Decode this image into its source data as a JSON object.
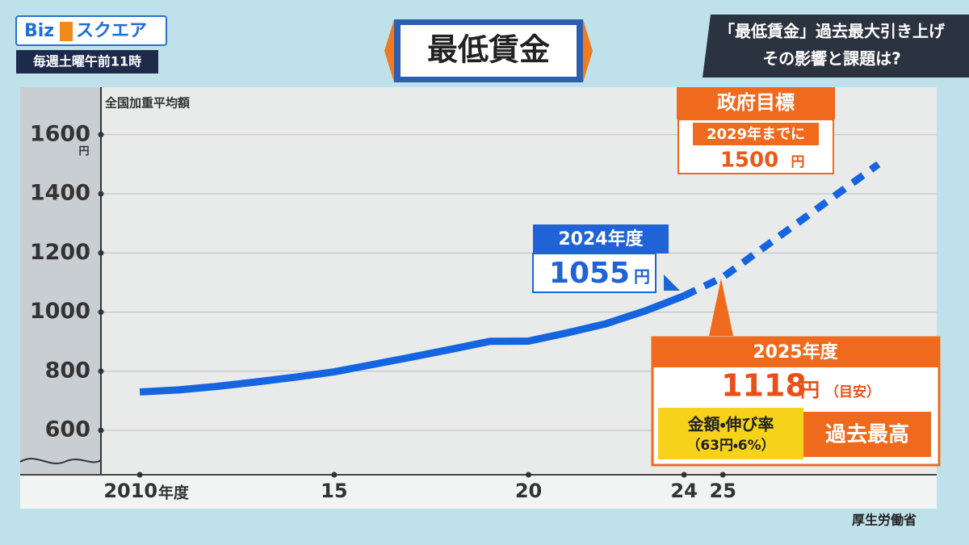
{
  "header": {
    "logo_left": "Biz",
    "logo_right": "スクエア",
    "schedule": "毎週土曜午前11時",
    "headline": [
      "「最低賃金」過去最大引き上げ",
      "その影響と課題は?"
    ]
  },
  "chart_data": {
    "type": "line",
    "title": "最低賃金",
    "y_label": "全国加重平均額",
    "y_unit": "円",
    "x_unit": "年度",
    "xlim": [
      2009,
      2030.5
    ],
    "ylim": [
      450,
      1755
    ],
    "xticks": [
      {
        "value": 2010,
        "label": "2010"
      },
      {
        "value": 2015,
        "label": "15"
      },
      {
        "value": 2020,
        "label": "20"
      },
      {
        "value": 2024,
        "label": "24"
      },
      {
        "value": 2025,
        "label": "25"
      }
    ],
    "yticks": [
      600,
      800,
      1000,
      1200,
      1400,
      1600
    ],
    "grid": true,
    "series": [
      {
        "color": "#1565e0",
        "dash": false,
        "x": [
          2010,
          2011,
          2012,
          2013,
          2014,
          2015,
          2016,
          2017,
          2018,
          2019,
          2020,
          2021,
          2022,
          2023,
          2024
        ],
        "values": [
          730,
          737,
          749,
          764,
          780,
          798,
          823,
          848,
          874,
          901,
          902,
          930,
          961,
          1004,
          1055
        ]
      },
      {
        "color": "#1565e0",
        "dash": true,
        "x": [
          2024,
          2025,
          2029
        ],
        "values": [
          1055,
          1118,
          1500
        ]
      }
    ],
    "annotations": {
      "y2024": {
        "title": "2024年度",
        "amount": "1055",
        "unit": "円"
      },
      "goal": {
        "title": "政府目標",
        "when": "2029年までに",
        "amount": "1500",
        "unit": "円"
      },
      "y2025": {
        "title": "2025年度",
        "amount": "1118",
        "unit": "円",
        "note": "（目安）",
        "sub1": "金額・伸び率",
        "sub2": "（63円・6%）",
        "badge": "過去最高"
      }
    },
    "source": "厚生労働省"
  }
}
